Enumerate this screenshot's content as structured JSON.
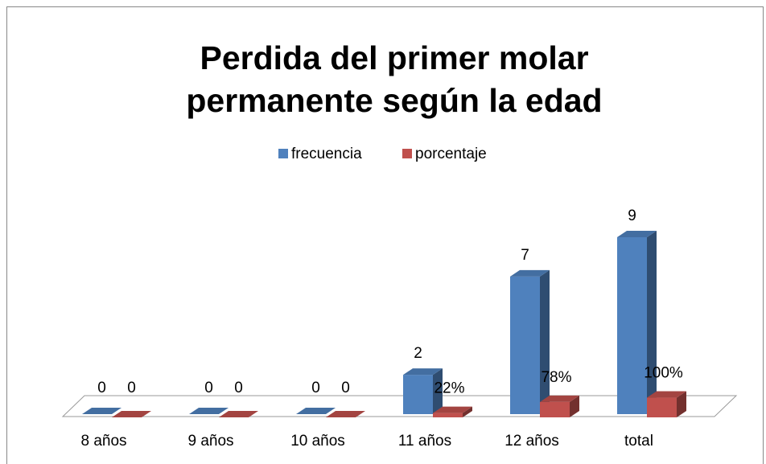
{
  "chart_data": {
    "type": "bar3d",
    "title_lines": [
      "Perdida del primer molar",
      "permanente según la edad"
    ],
    "categories": [
      "8 años",
      "9 años",
      "10 años",
      "11 años",
      "12 años",
      "total"
    ],
    "series": [
      {
        "name": "frecuencia",
        "color": "#4f81bd",
        "values": [
          0,
          0,
          0,
          2,
          7,
          9
        ]
      },
      {
        "name": "porcentaje",
        "color": "#c0504d",
        "values": [
          0,
          0,
          0,
          0.22,
          0.78,
          1
        ],
        "value_labels": [
          "0",
          "0",
          "0",
          "22%",
          "78%",
          "100%"
        ]
      }
    ],
    "legend": "top"
  }
}
